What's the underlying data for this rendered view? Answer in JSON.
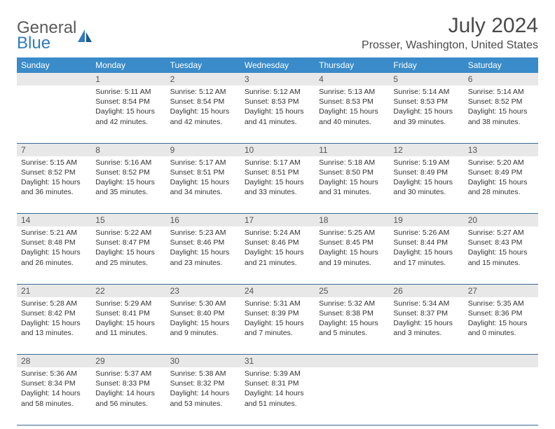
{
  "logo": {
    "text1": "General",
    "text2": "Blue"
  },
  "title": "July 2024",
  "location": "Prosser, Washington, United States",
  "header_bg": "#3a8bc9",
  "divider_color": "#3a6a94",
  "daynum_bg": "#e8e8e8",
  "weekdays": [
    "Sunday",
    "Monday",
    "Tuesday",
    "Wednesday",
    "Thursday",
    "Friday",
    "Saturday"
  ],
  "start_offset": 1,
  "days": [
    {
      "n": 1,
      "sr": "5:11 AM",
      "ss": "8:54 PM",
      "dl": "15 hours and 42 minutes."
    },
    {
      "n": 2,
      "sr": "5:12 AM",
      "ss": "8:54 PM",
      "dl": "15 hours and 42 minutes."
    },
    {
      "n": 3,
      "sr": "5:12 AM",
      "ss": "8:53 PM",
      "dl": "15 hours and 41 minutes."
    },
    {
      "n": 4,
      "sr": "5:13 AM",
      "ss": "8:53 PM",
      "dl": "15 hours and 40 minutes."
    },
    {
      "n": 5,
      "sr": "5:14 AM",
      "ss": "8:53 PM",
      "dl": "15 hours and 39 minutes."
    },
    {
      "n": 6,
      "sr": "5:14 AM",
      "ss": "8:52 PM",
      "dl": "15 hours and 38 minutes."
    },
    {
      "n": 7,
      "sr": "5:15 AM",
      "ss": "8:52 PM",
      "dl": "15 hours and 36 minutes."
    },
    {
      "n": 8,
      "sr": "5:16 AM",
      "ss": "8:52 PM",
      "dl": "15 hours and 35 minutes."
    },
    {
      "n": 9,
      "sr": "5:17 AM",
      "ss": "8:51 PM",
      "dl": "15 hours and 34 minutes."
    },
    {
      "n": 10,
      "sr": "5:17 AM",
      "ss": "8:51 PM",
      "dl": "15 hours and 33 minutes."
    },
    {
      "n": 11,
      "sr": "5:18 AM",
      "ss": "8:50 PM",
      "dl": "15 hours and 31 minutes."
    },
    {
      "n": 12,
      "sr": "5:19 AM",
      "ss": "8:49 PM",
      "dl": "15 hours and 30 minutes."
    },
    {
      "n": 13,
      "sr": "5:20 AM",
      "ss": "8:49 PM",
      "dl": "15 hours and 28 minutes."
    },
    {
      "n": 14,
      "sr": "5:21 AM",
      "ss": "8:48 PM",
      "dl": "15 hours and 26 minutes."
    },
    {
      "n": 15,
      "sr": "5:22 AM",
      "ss": "8:47 PM",
      "dl": "15 hours and 25 minutes."
    },
    {
      "n": 16,
      "sr": "5:23 AM",
      "ss": "8:46 PM",
      "dl": "15 hours and 23 minutes."
    },
    {
      "n": 17,
      "sr": "5:24 AM",
      "ss": "8:46 PM",
      "dl": "15 hours and 21 minutes."
    },
    {
      "n": 18,
      "sr": "5:25 AM",
      "ss": "8:45 PM",
      "dl": "15 hours and 19 minutes."
    },
    {
      "n": 19,
      "sr": "5:26 AM",
      "ss": "8:44 PM",
      "dl": "15 hours and 17 minutes."
    },
    {
      "n": 20,
      "sr": "5:27 AM",
      "ss": "8:43 PM",
      "dl": "15 hours and 15 minutes."
    },
    {
      "n": 21,
      "sr": "5:28 AM",
      "ss": "8:42 PM",
      "dl": "15 hours and 13 minutes."
    },
    {
      "n": 22,
      "sr": "5:29 AM",
      "ss": "8:41 PM",
      "dl": "15 hours and 11 minutes."
    },
    {
      "n": 23,
      "sr": "5:30 AM",
      "ss": "8:40 PM",
      "dl": "15 hours and 9 minutes."
    },
    {
      "n": 24,
      "sr": "5:31 AM",
      "ss": "8:39 PM",
      "dl": "15 hours and 7 minutes."
    },
    {
      "n": 25,
      "sr": "5:32 AM",
      "ss": "8:38 PM",
      "dl": "15 hours and 5 minutes."
    },
    {
      "n": 26,
      "sr": "5:34 AM",
      "ss": "8:37 PM",
      "dl": "15 hours and 3 minutes."
    },
    {
      "n": 27,
      "sr": "5:35 AM",
      "ss": "8:36 PM",
      "dl": "15 hours and 0 minutes."
    },
    {
      "n": 28,
      "sr": "5:36 AM",
      "ss": "8:34 PM",
      "dl": "14 hours and 58 minutes."
    },
    {
      "n": 29,
      "sr": "5:37 AM",
      "ss": "8:33 PM",
      "dl": "14 hours and 56 minutes."
    },
    {
      "n": 30,
      "sr": "5:38 AM",
      "ss": "8:32 PM",
      "dl": "14 hours and 53 minutes."
    },
    {
      "n": 31,
      "sr": "5:39 AM",
      "ss": "8:31 PM",
      "dl": "14 hours and 51 minutes."
    }
  ],
  "labels": {
    "sunrise": "Sunrise:",
    "sunset": "Sunset:",
    "daylight": "Daylight:"
  }
}
